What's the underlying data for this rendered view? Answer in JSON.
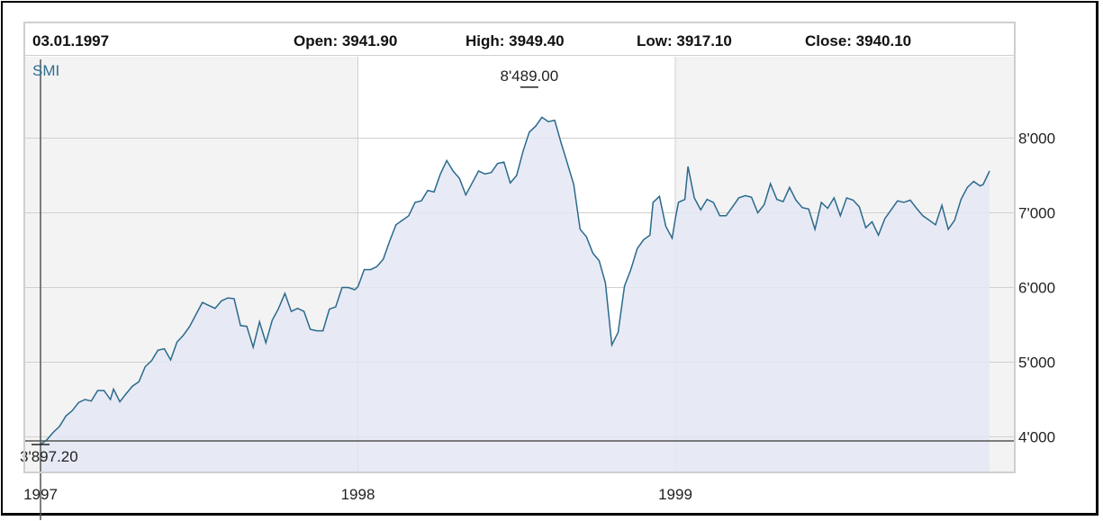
{
  "header": {
    "date": "03.01.1997",
    "open_label": "Open: 3941.90",
    "high_label": "High: 3949.40",
    "low_label": "Low: 3917.10",
    "close_label": "Close: 3940.10"
  },
  "colors": {
    "line": "#2b6a8c",
    "area": "#e4e8f4",
    "band_shade": "#f3f3f3",
    "grid": "#d0d0d0",
    "crosshair": "#555555"
  },
  "chart_data": {
    "type": "area",
    "series_label": "SMI",
    "x_tick_labels": [
      "1997",
      "1998",
      "1999"
    ],
    "y_tick_labels": [
      "4'000",
      "5'000",
      "6'000",
      "7'000",
      "8'000"
    ],
    "y_ticks": [
      4000,
      5000,
      6000,
      7000,
      8000
    ],
    "ylim": [
      3600,
      8950
    ],
    "xlim": [
      1997.0,
      1999.98
    ],
    "grid": true,
    "max_annotation": "8'489.00",
    "max_value": 8489.0,
    "max_x": 1998.54,
    "min_annotation": "3'897.20",
    "min_value": 3897.2,
    "min_x": 1997.0,
    "crosshair_x": 1997.0,
    "series": [
      {
        "name": "SMI",
        "points": [
          [
            1997.0,
            3897
          ],
          [
            1997.02,
            3960
          ],
          [
            1997.04,
            4060
          ],
          [
            1997.06,
            4140
          ],
          [
            1997.08,
            4280
          ],
          [
            1997.1,
            4350
          ],
          [
            1997.12,
            4460
          ],
          [
            1997.14,
            4500
          ],
          [
            1997.16,
            4480
          ],
          [
            1997.18,
            4620
          ],
          [
            1997.2,
            4620
          ],
          [
            1997.22,
            4500
          ],
          [
            1997.23,
            4640
          ],
          [
            1997.25,
            4470
          ],
          [
            1997.27,
            4580
          ],
          [
            1997.29,
            4680
          ],
          [
            1997.31,
            4740
          ],
          [
            1997.33,
            4940
          ],
          [
            1997.35,
            5020
          ],
          [
            1997.37,
            5160
          ],
          [
            1997.39,
            5180
          ],
          [
            1997.41,
            5030
          ],
          [
            1997.43,
            5270
          ],
          [
            1997.45,
            5360
          ],
          [
            1997.47,
            5480
          ],
          [
            1997.49,
            5640
          ],
          [
            1997.51,
            5800
          ],
          [
            1997.53,
            5760
          ],
          [
            1997.55,
            5720
          ],
          [
            1997.57,
            5820
          ],
          [
            1997.59,
            5860
          ],
          [
            1997.61,
            5850
          ],
          [
            1997.63,
            5490
          ],
          [
            1997.65,
            5480
          ],
          [
            1997.67,
            5200
          ],
          [
            1997.69,
            5540
          ],
          [
            1997.71,
            5260
          ],
          [
            1997.73,
            5560
          ],
          [
            1997.75,
            5720
          ],
          [
            1997.77,
            5920
          ],
          [
            1997.79,
            5680
          ],
          [
            1997.81,
            5720
          ],
          [
            1997.83,
            5680
          ],
          [
            1997.85,
            5440
          ],
          [
            1997.87,
            5420
          ],
          [
            1997.89,
            5420
          ],
          [
            1997.91,
            5710
          ],
          [
            1997.93,
            5740
          ],
          [
            1997.95,
            6000
          ],
          [
            1997.97,
            6000
          ],
          [
            1997.99,
            5970
          ],
          [
            1998.0,
            6010
          ],
          [
            1998.02,
            6240
          ],
          [
            1998.04,
            6240
          ],
          [
            1998.06,
            6280
          ],
          [
            1998.08,
            6380
          ],
          [
            1998.1,
            6620
          ],
          [
            1998.12,
            6840
          ],
          [
            1998.14,
            6900
          ],
          [
            1998.16,
            6960
          ],
          [
            1998.18,
            7140
          ],
          [
            1998.2,
            7160
          ],
          [
            1998.22,
            7300
          ],
          [
            1998.24,
            7280
          ],
          [
            1998.26,
            7520
          ],
          [
            1998.28,
            7700
          ],
          [
            1998.3,
            7560
          ],
          [
            1998.32,
            7460
          ],
          [
            1998.34,
            7240
          ],
          [
            1998.36,
            7400
          ],
          [
            1998.38,
            7560
          ],
          [
            1998.4,
            7520
          ],
          [
            1998.42,
            7540
          ],
          [
            1998.44,
            7660
          ],
          [
            1998.46,
            7680
          ],
          [
            1998.48,
            7400
          ],
          [
            1998.5,
            7500
          ],
          [
            1998.52,
            7820
          ],
          [
            1998.54,
            8080
          ],
          [
            1998.56,
            8160
          ],
          [
            1998.58,
            8280
          ],
          [
            1998.6,
            8220
          ],
          [
            1998.62,
            8240
          ],
          [
            1998.64,
            7940
          ],
          [
            1998.66,
            7660
          ],
          [
            1998.68,
            7380
          ],
          [
            1998.7,
            6780
          ],
          [
            1998.72,
            6680
          ],
          [
            1998.74,
            6460
          ],
          [
            1998.76,
            6360
          ],
          [
            1998.78,
            6060
          ],
          [
            1998.8,
            5230
          ],
          [
            1998.82,
            5400
          ],
          [
            1998.84,
            6020
          ],
          [
            1998.86,
            6240
          ],
          [
            1998.88,
            6520
          ],
          [
            1998.9,
            6640
          ],
          [
            1998.92,
            6700
          ],
          [
            1998.93,
            7140
          ],
          [
            1998.95,
            7220
          ],
          [
            1998.97,
            6820
          ],
          [
            1998.99,
            6660
          ],
          [
            1999.0,
            6920
          ],
          [
            1999.01,
            7140
          ],
          [
            1999.03,
            7180
          ],
          [
            1999.04,
            7620
          ],
          [
            1999.06,
            7200
          ],
          [
            1999.08,
            7040
          ],
          [
            1999.1,
            7180
          ],
          [
            1999.12,
            7140
          ],
          [
            1999.14,
            6960
          ],
          [
            1999.16,
            6960
          ],
          [
            1999.18,
            7080
          ],
          [
            1999.2,
            7200
          ],
          [
            1999.22,
            7230
          ],
          [
            1999.24,
            7210
          ],
          [
            1999.26,
            7000
          ],
          [
            1999.28,
            7110
          ],
          [
            1999.3,
            7390
          ],
          [
            1999.32,
            7180
          ],
          [
            1999.34,
            7150
          ],
          [
            1999.36,
            7340
          ],
          [
            1999.38,
            7170
          ],
          [
            1999.4,
            7070
          ],
          [
            1999.42,
            7050
          ],
          [
            1999.44,
            6780
          ],
          [
            1999.46,
            7140
          ],
          [
            1999.48,
            7060
          ],
          [
            1999.5,
            7200
          ],
          [
            1999.52,
            6960
          ],
          [
            1999.54,
            7200
          ],
          [
            1999.56,
            7170
          ],
          [
            1999.58,
            7080
          ],
          [
            1999.6,
            6800
          ],
          [
            1999.62,
            6880
          ],
          [
            1999.64,
            6700
          ],
          [
            1999.66,
            6920
          ],
          [
            1999.68,
            7040
          ],
          [
            1999.7,
            7160
          ],
          [
            1999.72,
            7140
          ],
          [
            1999.74,
            7170
          ],
          [
            1999.76,
            7060
          ],
          [
            1999.78,
            6960
          ],
          [
            1999.8,
            6900
          ],
          [
            1999.82,
            6840
          ],
          [
            1999.84,
            7100
          ],
          [
            1999.86,
            6780
          ],
          [
            1999.88,
            6900
          ],
          [
            1999.9,
            7180
          ],
          [
            1999.92,
            7340
          ],
          [
            1999.94,
            7420
          ],
          [
            1999.96,
            7360
          ],
          [
            1999.97,
            7380
          ],
          [
            1999.99,
            7560
          ]
        ]
      }
    ]
  }
}
